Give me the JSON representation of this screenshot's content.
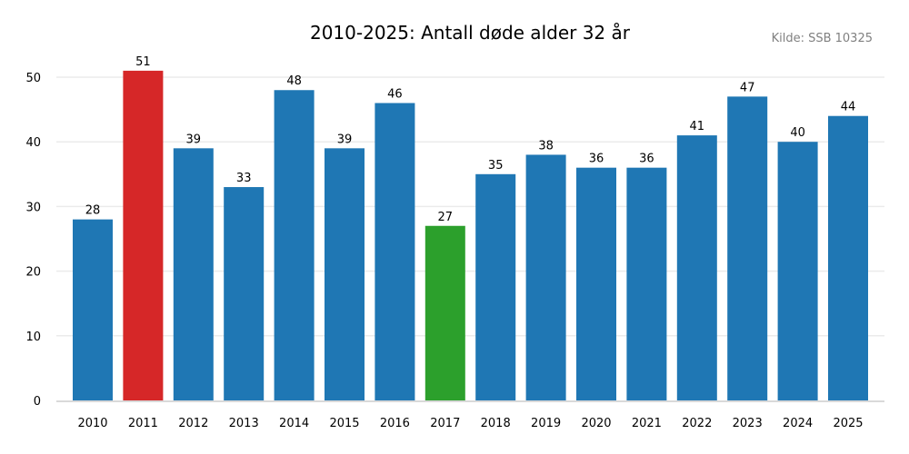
{
  "chart_data": {
    "type": "bar",
    "title": "2010-2025: Antall døde alder 32 år",
    "source": "Kilde: SSB 10325",
    "categories": [
      "2010",
      "2011",
      "2012",
      "2013",
      "2014",
      "2015",
      "2016",
      "2017",
      "2018",
      "2019",
      "2020",
      "2021",
      "2022",
      "2023",
      "2024",
      "2025"
    ],
    "values": [
      28,
      51,
      39,
      33,
      48,
      39,
      46,
      27,
      35,
      38,
      36,
      36,
      41,
      47,
      40,
      44
    ],
    "colors": [
      "#1f77b4",
      "#d62728",
      "#1f77b4",
      "#1f77b4",
      "#1f77b4",
      "#1f77b4",
      "#1f77b4",
      "#2ca02c",
      "#1f77b4",
      "#1f77b4",
      "#1f77b4",
      "#1f77b4",
      "#1f77b4",
      "#1f77b4",
      "#1f77b4",
      "#1f77b4"
    ],
    "highlight": {
      "max": "#d62728",
      "min": "#2ca02c",
      "default": "#1f77b4"
    },
    "yticks": [
      0,
      10,
      20,
      30,
      40,
      50
    ],
    "ylim": [
      0,
      53.5
    ],
    "xlabel": "",
    "ylabel": "",
    "grid": "horizontal",
    "data_labels": true
  }
}
